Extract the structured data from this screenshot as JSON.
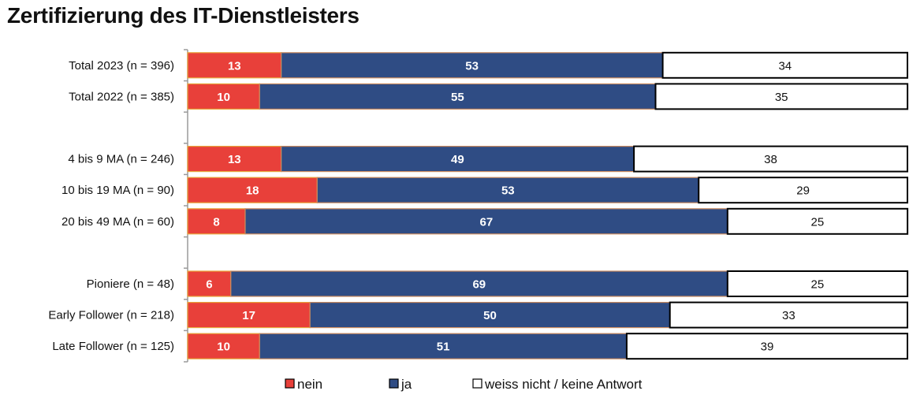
{
  "chart_data": {
    "type": "bar",
    "orientation": "horizontal",
    "stacked": true,
    "percent": true,
    "title": "Zertifizierung des IT-Dienstleisters",
    "categories": [
      "Total 2023 (n = 396)",
      "Total 2022 (n = 385)",
      "4 bis 9 MA (n = 246)",
      "10 bis 19 MA (n = 90)",
      "20 bis 49 MA (n = 60)",
      "Pioniere (n = 48)",
      "Early Follower (n = 218)",
      "Late Follower (n = 125)"
    ],
    "groups": [
      [
        0,
        1
      ],
      [
        2,
        3,
        4
      ],
      [
        5,
        6,
        7
      ]
    ],
    "series": [
      {
        "name": "nein",
        "color": "#E8403A",
        "label_color": "#ffffff",
        "values": [
          13,
          10,
          13,
          18,
          8,
          6,
          17,
          10
        ]
      },
      {
        "name": "ja",
        "color": "#2F4C84",
        "label_color": "#ffffff",
        "values": [
          53,
          55,
          49,
          53,
          67,
          69,
          50,
          51
        ]
      },
      {
        "name": "weiss nicht / keine Antwort",
        "color": "#ffffff",
        "label_color": "#111111",
        "values": [
          34,
          35,
          38,
          29,
          25,
          25,
          33,
          39
        ]
      }
    ],
    "xlim": [
      0,
      100
    ],
    "grid": false,
    "legend": "bottom"
  }
}
